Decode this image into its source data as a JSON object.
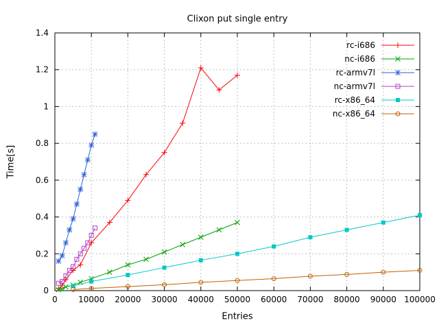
{
  "chart_data": {
    "type": "line",
    "title": "Clixon put single entry",
    "xlabel": "Entries",
    "ylabel": "Time[s]",
    "xlim": [
      0,
      100000
    ],
    "ylim": [
      0,
      1.4
    ],
    "x_ticks": [
      0,
      10000,
      20000,
      30000,
      40000,
      50000,
      60000,
      70000,
      80000,
      90000,
      100000
    ],
    "y_ticks": [
      0,
      0.2,
      0.4,
      0.6,
      0.8,
      1,
      1.2,
      1.4
    ],
    "grid": true,
    "legend_position": "top-right-inside",
    "grid_color": "#c0c0c0",
    "axis_color": "#000000",
    "series": [
      {
        "name": "rc-i686",
        "color": "#ff0000",
        "marker": "plus",
        "x": [
          1000,
          2000,
          3000,
          5000,
          7000,
          10000,
          15000,
          20000,
          25000,
          30000,
          35000,
          40000,
          45000,
          50000
        ],
        "y": [
          0.01,
          0.03,
          0.06,
          0.11,
          0.14,
          0.26,
          0.37,
          0.49,
          0.63,
          0.75,
          0.91,
          1.21,
          1.09,
          1.17
        ]
      },
      {
        "name": "nc-i686",
        "color": "#00a000",
        "marker": "cross",
        "x": [
          1000,
          2000,
          3000,
          5000,
          7000,
          10000,
          15000,
          20000,
          25000,
          30000,
          35000,
          40000,
          45000,
          50000
        ],
        "y": [
          0.005,
          0.01,
          0.02,
          0.03,
          0.045,
          0.065,
          0.1,
          0.14,
          0.17,
          0.21,
          0.25,
          0.29,
          0.33,
          0.37
        ]
      },
      {
        "name": "rc-armv7l",
        "color": "#2b5fd9",
        "marker": "asterisk",
        "x": [
          1000,
          2000,
          3000,
          4000,
          5000,
          6000,
          7000,
          8000,
          9000,
          10000,
          11000
        ],
        "y": [
          0.16,
          0.19,
          0.26,
          0.33,
          0.39,
          0.47,
          0.55,
          0.63,
          0.71,
          0.79,
          0.85
        ]
      },
      {
        "name": "nc-armv7l",
        "color": "#b040c0",
        "marker": "open-square",
        "x": [
          1000,
          2000,
          3000,
          4000,
          5000,
          6000,
          7000,
          8000,
          9000,
          10000,
          11000
        ],
        "y": [
          0.04,
          0.05,
          0.08,
          0.11,
          0.13,
          0.17,
          0.2,
          0.23,
          0.26,
          0.3,
          0.34
        ]
      },
      {
        "name": "rc-x86_64",
        "color": "#00c8c8",
        "marker": "filled-square",
        "x": [
          5000,
          10000,
          20000,
          30000,
          40000,
          50000,
          60000,
          70000,
          80000,
          90000,
          100000
        ],
        "y": [
          0.025,
          0.05,
          0.085,
          0.125,
          0.165,
          0.2,
          0.24,
          0.29,
          0.33,
          0.37,
          0.41
        ]
      },
      {
        "name": "nc-x86_64",
        "color": "#c06000",
        "marker": "open-circle",
        "x": [
          5000,
          10000,
          20000,
          30000,
          40000,
          50000,
          60000,
          70000,
          80000,
          90000,
          100000
        ],
        "y": [
          0.006,
          0.012,
          0.022,
          0.032,
          0.045,
          0.055,
          0.065,
          0.078,
          0.088,
          0.1,
          0.11
        ]
      }
    ]
  }
}
